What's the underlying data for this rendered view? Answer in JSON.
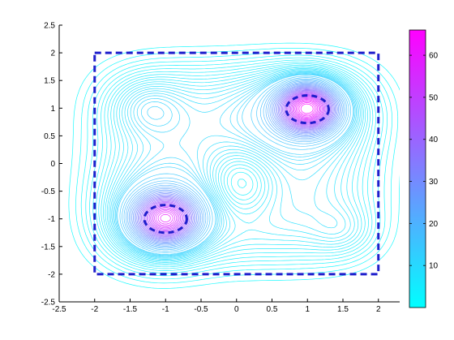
{
  "chart_data": {
    "type": "contour",
    "title": "",
    "xlabel": "",
    "ylabel": "",
    "xlim": [
      -2.5,
      2.3
    ],
    "ylim": [
      -2.5,
      2.5
    ],
    "x_ticks": [
      "-2.5",
      "-2",
      "-1.5",
      "-1",
      "-0.5",
      "0",
      "0.5",
      "1",
      "1.5",
      "2"
    ],
    "y_ticks": [
      "2.5",
      "2",
      "1.5",
      "1",
      "0.5",
      "0",
      "-0.5",
      "-1",
      "-1.5",
      "-2",
      "-2.5"
    ],
    "x_tick_values": [
      -2.5,
      -2,
      -1.5,
      -1,
      -0.5,
      0,
      0.5,
      1,
      1.5,
      2
    ],
    "y_tick_values": [
      2.5,
      2,
      1.5,
      1,
      0.5,
      0,
      -0.5,
      -1,
      -1.5,
      -2,
      -2.5
    ],
    "colorbar": {
      "range": [
        0,
        66
      ],
      "ticks": [
        "60",
        "50",
        "40",
        "30",
        "20",
        "10"
      ],
      "tick_values": [
        60,
        50,
        40,
        30,
        20,
        10
      ],
      "colors": [
        "#00ffff",
        "#ff00ff"
      ]
    },
    "peaks": [
      {
        "x": 1.0,
        "y": 1.0,
        "value": 65
      },
      {
        "x": -1.0,
        "y": -1.0,
        "value": 58
      },
      {
        "x": -1.25,
        "y": 1.0,
        "value": 12
      },
      {
        "x": 0.05,
        "y": -0.35,
        "value": 2
      }
    ],
    "annotations": {
      "box": {
        "x": [
          -2,
          2
        ],
        "y": [
          -2,
          2
        ],
        "color": "#1f1fcc",
        "style": "dashed"
      },
      "ellipses": [
        {
          "cx": 1.0,
          "cy": 0.98,
          "rx": 0.3,
          "ry": 0.25,
          "color": "#1f1fcc",
          "style": "dashed"
        },
        {
          "cx": -1.0,
          "cy": -1.0,
          "rx": 0.3,
          "ry": 0.25,
          "color": "#1f1fcc",
          "style": "dashed"
        }
      ]
    },
    "grid": false,
    "legend": "none"
  }
}
